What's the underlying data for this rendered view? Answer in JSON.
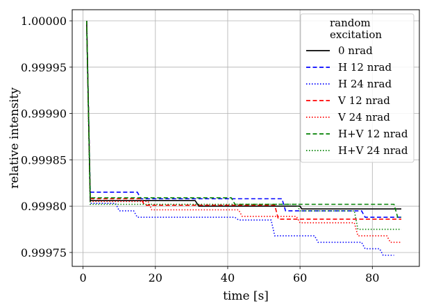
{
  "chart_data": {
    "type": "line",
    "title": "",
    "xlabel": "time [s]",
    "ylabel": "relative intensity",
    "xlim": [
      -3,
      93
    ],
    "ylim": [
      0.999735,
      1.000012
    ],
    "xticks": [
      0,
      20,
      40,
      60,
      80
    ],
    "xtick_labels": [
      "0",
      "20",
      "40",
      "60",
      "80"
    ],
    "yticks": [
      0.99975,
      0.9998,
      0.99985,
      0.9999,
      0.99995,
      1.0
    ],
    "ytick_labels": [
      "0.99975",
      "0.99980",
      "0.99985",
      "0.99990",
      "0.99995",
      "1.00000"
    ],
    "grid": true,
    "legend": {
      "title": "random\nexcitation",
      "placement": "top-right"
    },
    "series": [
      {
        "name": "0 nrad",
        "color": "#000000",
        "dash": "solid",
        "points": [
          [
            1,
            1.0
          ],
          [
            2,
            0.999806
          ],
          [
            31,
            0.999806
          ],
          [
            32,
            0.9998
          ],
          [
            60,
            0.9998
          ],
          [
            60.5,
            0.999797
          ],
          [
            88,
            0.999797
          ]
        ]
      },
      {
        "name": "H 12 nrad",
        "color": "#0000ff",
        "dash": "dashed",
        "points": [
          [
            1,
            1.0
          ],
          [
            2,
            0.999815
          ],
          [
            15,
            0.999815
          ],
          [
            16,
            0.999808
          ],
          [
            55,
            0.999808
          ],
          [
            56,
            0.999795
          ],
          [
            77,
            0.999795
          ],
          [
            78,
            0.999788
          ],
          [
            88,
            0.999788
          ]
        ]
      },
      {
        "name": "H 24 nrad",
        "color": "#0000ff",
        "dash": "dotted",
        "points": [
          [
            1,
            1.0
          ],
          [
            2,
            0.999803
          ],
          [
            9,
            0.999803
          ],
          [
            10,
            0.999795
          ],
          [
            14,
            0.999795
          ],
          [
            15,
            0.999788
          ],
          [
            42,
            0.999788
          ],
          [
            43,
            0.999785
          ],
          [
            52,
            0.999785
          ],
          [
            53,
            0.999768
          ],
          [
            64,
            0.999768
          ],
          [
            65,
            0.999761
          ],
          [
            77,
            0.999761
          ],
          [
            78,
            0.999754
          ],
          [
            82,
            0.999754
          ],
          [
            83,
            0.999747
          ],
          [
            86,
            0.999747
          ]
        ]
      },
      {
        "name": "V 12 nrad",
        "color": "#ff0000",
        "dash": "dashed",
        "points": [
          [
            1,
            1.0
          ],
          [
            2,
            0.999808
          ],
          [
            16,
            0.999808
          ],
          [
            17,
            0.999801
          ],
          [
            53,
            0.999801
          ],
          [
            54,
            0.999786
          ],
          [
            88,
            0.999786
          ]
        ]
      },
      {
        "name": "V 24 nrad",
        "color": "#ff0000",
        "dash": "dotted",
        "points": [
          [
            1,
            1.0
          ],
          [
            2,
            0.999805
          ],
          [
            18,
            0.999805
          ],
          [
            19,
            0.999796
          ],
          [
            43,
            0.999796
          ],
          [
            44,
            0.999789
          ],
          [
            59,
            0.999789
          ],
          [
            60,
            0.999782
          ],
          [
            75,
            0.999782
          ],
          [
            76,
            0.999768
          ],
          [
            84,
            0.999768
          ],
          [
            85,
            0.999761
          ],
          [
            88,
            0.999761
          ]
        ]
      },
      {
        "name": "H+V 12 nrad",
        "color": "#008000",
        "dash": "dashed",
        "points": [
          [
            1,
            1.0
          ],
          [
            2,
            0.999809
          ],
          [
            41,
            0.999809
          ],
          [
            42,
            0.999802
          ],
          [
            86,
            0.999802
          ],
          [
            87,
            0.999788
          ],
          [
            88,
            0.999788
          ]
        ]
      },
      {
        "name": "H+V 24 nrad",
        "color": "#008000",
        "dash": "dotted",
        "points": [
          [
            1,
            1.0
          ],
          [
            2,
            0.999802
          ],
          [
            59,
            0.999802
          ],
          [
            60,
            0.999795
          ],
          [
            75,
            0.999795
          ],
          [
            76,
            0.999775
          ],
          [
            88,
            0.999775
          ]
        ]
      }
    ]
  }
}
